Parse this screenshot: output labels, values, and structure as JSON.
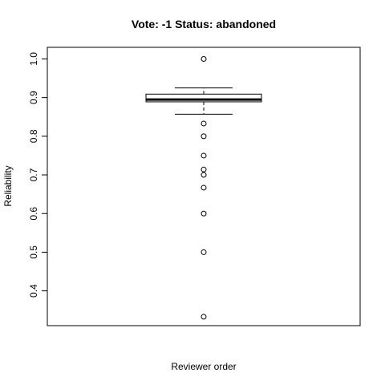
{
  "chart_data": {
    "type": "boxplot",
    "title": "Vote: -1 Status: abandoned",
    "xlabel": "Reviewer order",
    "ylabel": "Reliability",
    "ylim": [
      0.31,
      1.03
    ],
    "y_ticks": [
      0.4,
      0.5,
      0.6,
      0.7,
      0.8,
      0.9,
      1.0
    ],
    "y_tick_labels": [
      "0.4",
      "0.5",
      "0.6",
      "0.7",
      "0.8",
      "0.9",
      "1.0"
    ],
    "grid": false,
    "box": {
      "q1": 0.889,
      "median": 0.895,
      "q3": 0.909,
      "whisker_low": 0.857,
      "whisker_high": 0.925
    },
    "outliers": [
      1.0,
      0.833,
      0.8,
      0.75,
      0.714,
      0.7,
      0.667,
      0.6,
      0.5,
      0.333
    ]
  }
}
